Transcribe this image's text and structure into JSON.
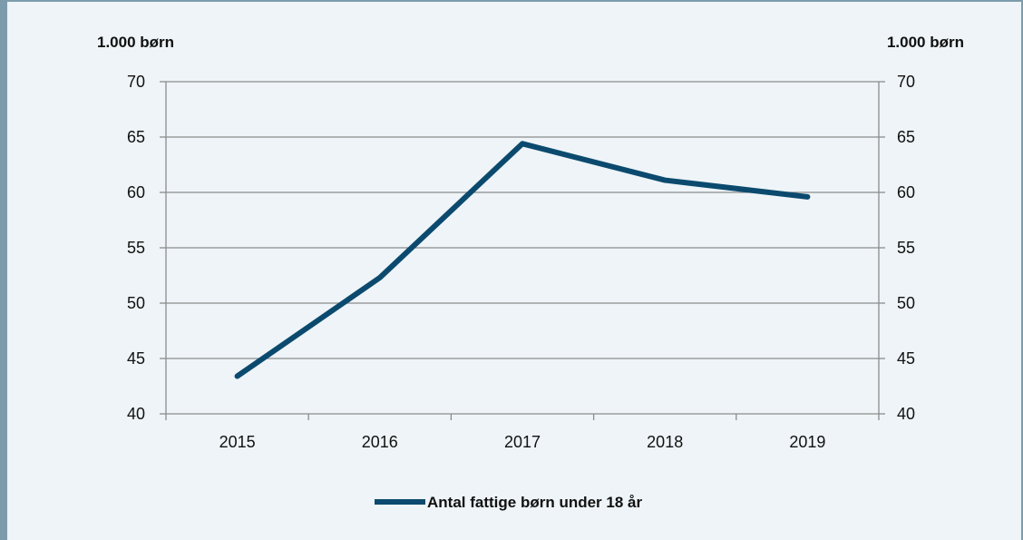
{
  "chart_data": {
    "type": "line",
    "ylabel_left": "1.000 børn",
    "ylabel_right": "1.000 børn",
    "categories": [
      "2015",
      "2016",
      "2017",
      "2018",
      "2019"
    ],
    "series": [
      {
        "name": "Antal fattige børn under 18 år",
        "values": [
          43.4,
          52.3,
          64.4,
          61.1,
          59.6
        ],
        "color": "#0b4a6e"
      }
    ],
    "ylim": [
      40,
      70
    ],
    "yticks": [
      40,
      45,
      50,
      55,
      60,
      65,
      70
    ],
    "grid": true,
    "legend_position": "bottom"
  }
}
